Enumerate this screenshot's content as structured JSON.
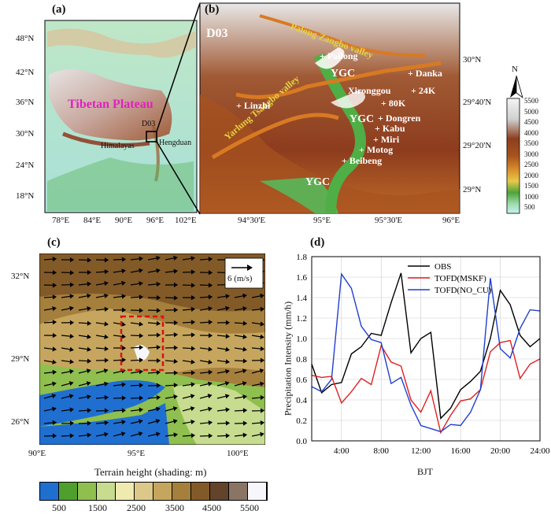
{
  "panel_a": {
    "label": "(a)",
    "lat_ticks": [
      "48°N",
      "42°N",
      "36°N",
      "30°N",
      "24°N",
      "18°N"
    ],
    "lon_ticks": [
      "78°E",
      "84°E",
      "90°E",
      "96°E",
      "102°E"
    ],
    "region_label": "Tibetan Plateau",
    "box_label": "D03",
    "himalayas": "Himalayas",
    "hengduan": "Hengduan"
  },
  "panel_b": {
    "label": "(b)",
    "domain": "D03",
    "lat_ticks": [
      "30°N",
      "29°40'N",
      "29°20'N",
      "29°N"
    ],
    "lon_ticks": [
      "94°30'E",
      "95°E",
      "95°30'E",
      "96°E"
    ],
    "valley_1": "Palong Zangbo valley",
    "valley_2": "Yarlung Tsangbo valley",
    "ygc": "YGC",
    "stations": [
      "Pailong",
      "Linzhi",
      "Danka",
      "24K",
      "Xironggou",
      "80K",
      "Dongren",
      "Kabu",
      "Miri",
      "Motog",
      "Beibeng"
    ],
    "north": "N",
    "colorbar": [
      "5500",
      "5000",
      "4500",
      "4000",
      "3500",
      "3000",
      "2500",
      "2000",
      "1500",
      "1000",
      "500"
    ]
  },
  "panel_c": {
    "label": "(c)",
    "lat_ticks": [
      "32°N",
      "29°N",
      "26°N"
    ],
    "lon_ticks": [
      "90°E",
      "95°E",
      "100°E"
    ],
    "ref_vector": "6 (m/s)",
    "caption": "Terrain height (shading: m)",
    "colorbar": [
      "500",
      "1500",
      "2500",
      "3500",
      "4500",
      "5500"
    ],
    "colorbar_colors": [
      "#1f6fd1",
      "#4f9f2f",
      "#8fbf4f",
      "#c7dc8f",
      "#efeab0",
      "#dcc98a",
      "#c6a65e",
      "#a57f3c",
      "#825a28",
      "#63432a",
      "#8a7565",
      "#f7f7fb"
    ]
  },
  "panel_d": {
    "label": "(d)",
    "ylabel": "Precipitation Intensity (mm/h)",
    "xlabel": "BJT"
  },
  "chart_data": {
    "type": "line",
    "x": [
      1,
      2,
      3,
      4,
      5,
      6,
      7,
      8,
      9,
      10,
      11,
      12,
      13,
      14,
      15,
      16,
      17,
      18,
      19,
      20,
      21,
      22,
      23,
      24
    ],
    "x_ticks": [
      "4:00",
      "8:00",
      "12:00",
      "16:00",
      "20:00",
      "24:00"
    ],
    "y_ticks": [
      "0.0",
      "0.2",
      "0.4",
      "0.6",
      "0.8",
      "1.0",
      "1.2",
      "1.4",
      "1.6",
      "1.8"
    ],
    "xlim": [
      1,
      24
    ],
    "ylim": [
      0,
      1.8
    ],
    "grid": true,
    "legend_position": "top-right",
    "series": [
      {
        "name": "OBS",
        "color": "#000000",
        "values": [
          0.75,
          0.47,
          0.55,
          0.57,
          0.85,
          0.92,
          1.05,
          1.03,
          1.35,
          1.64,
          0.86,
          1.0,
          1.06,
          0.22,
          0.32,
          0.5,
          0.58,
          0.68,
          1.0,
          1.47,
          1.33,
          1.03,
          0.92,
          1.0
        ]
      },
      {
        "name": "TOFD(MSKF)",
        "color": "#e02020",
        "values": [
          0.64,
          0.62,
          0.63,
          0.37,
          0.48,
          0.61,
          0.55,
          0.93,
          0.77,
          0.73,
          0.4,
          0.28,
          0.49,
          0.08,
          0.25,
          0.39,
          0.41,
          0.5,
          0.87,
          0.96,
          0.98,
          0.61,
          0.75,
          0.8
        ]
      },
      {
        "name": "TOFD(NO_CU)",
        "color": "#1f3fcf",
        "values": [
          0.53,
          0.48,
          0.6,
          1.63,
          1.49,
          1.12,
          0.99,
          0.96,
          0.56,
          0.62,
          0.35,
          0.15,
          0.12,
          0.09,
          0.16,
          0.15,
          0.28,
          0.5,
          1.59,
          0.9,
          0.81,
          1.1,
          1.28,
          1.27
        ]
      }
    ]
  }
}
